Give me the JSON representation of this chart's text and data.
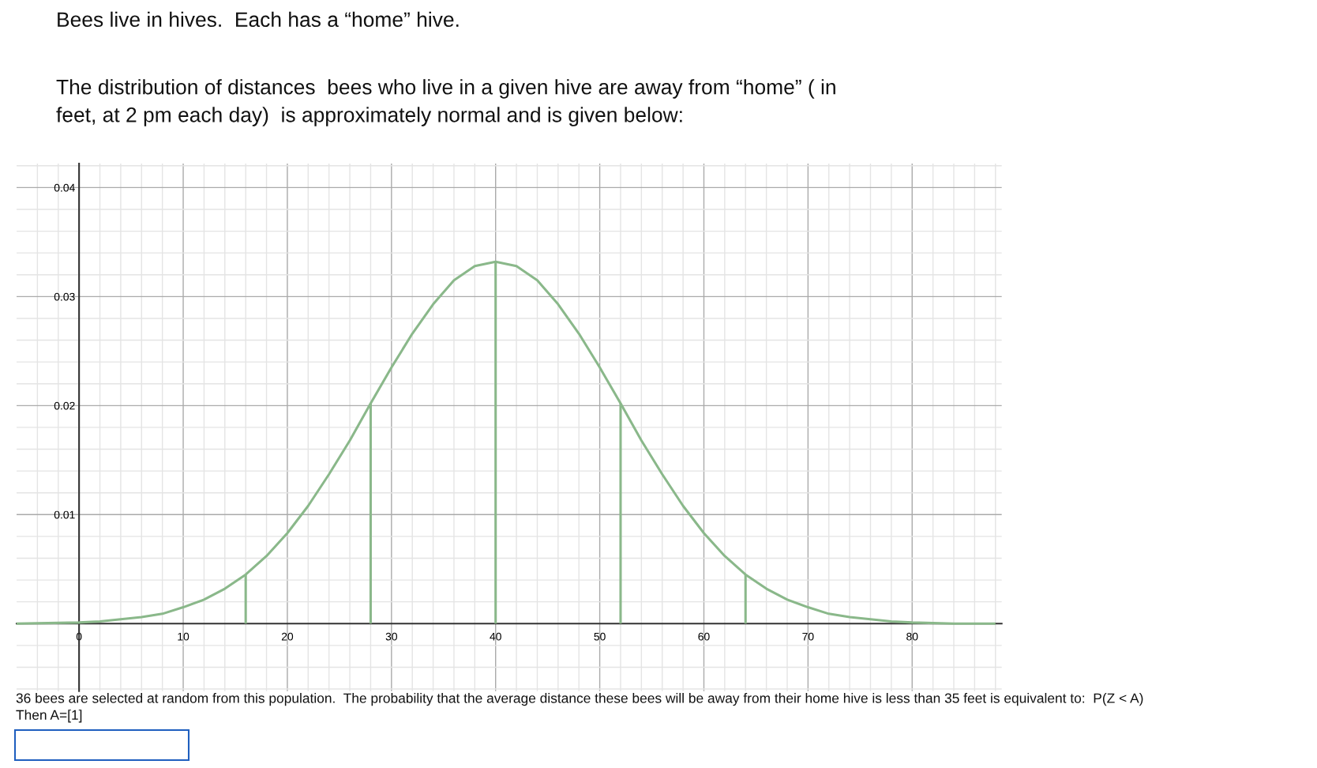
{
  "chart_data": {
    "type": "line",
    "title": "Bees live in hives.  Each has a “home” hive.",
    "subtitle": "The distribution of distances  bees who live in a given hive are away from “home” ( in\nfeet, at 2 pm each day)  is approximately normal and is given below:",
    "annotations": [
      "36 bees are selected at random from this population.  The probability that the average distance these bees will be away from their home hive is less than 35 feet is equivalent to:  P(Z < A)\nThen A=[1]"
    ],
    "series": [
      {
        "color": "#8ab88a",
        "x": [
          -6,
          0,
          2,
          4,
          6,
          8,
          10,
          12,
          14,
          16,
          18,
          20,
          22,
          24,
          26,
          28,
          30,
          32,
          34,
          36,
          38,
          40,
          42,
          44,
          46,
          48,
          50,
          52,
          54,
          56,
          58,
          60,
          62,
          64,
          66,
          68,
          70,
          72,
          74,
          76,
          78,
          80,
          84,
          88
        ],
        "values": [
          0.0,
          0.0001,
          0.0002,
          0.0004,
          0.0006,
          0.0009,
          0.0015,
          0.0022,
          0.0032,
          0.0045,
          0.0062,
          0.0083,
          0.0108,
          0.0137,
          0.0168,
          0.0202,
          0.0235,
          0.0266,
          0.0293,
          0.0315,
          0.0328,
          0.0332,
          0.0328,
          0.0315,
          0.0293,
          0.0266,
          0.0235,
          0.0202,
          0.0168,
          0.0137,
          0.0108,
          0.0083,
          0.0062,
          0.0045,
          0.0032,
          0.0022,
          0.0015,
          0.0009,
          0.0006,
          0.0004,
          0.0002,
          0.0001,
          0.0,
          0.0
        ]
      },
      {
        "color": "#8ab88a",
        "x": [
          16,
          16
        ],
        "values": [
          0,
          0.0045
        ]
      },
      {
        "color": "#8ab88a",
        "x": [
          28,
          28
        ],
        "values": [
          0,
          0.0202
        ]
      },
      {
        "color": "#8ab88a",
        "x": [
          40,
          40
        ],
        "values": [
          0,
          0.0332
        ]
      },
      {
        "color": "#8ab88a",
        "x": [
          52,
          52
        ],
        "values": [
          0,
          0.0202
        ]
      },
      {
        "color": "#8ab88a",
        "x": [
          64,
          64
        ],
        "values": [
          0,
          0.0045
        ]
      }
    ],
    "xlim": [
      -6,
      88.6
    ],
    "ylim": [
      -0.0062,
      0.0422
    ],
    "xticks": [
      {
        "value": -4,
        "label": null
      },
      {
        "value": -2,
        "label": null
      },
      0,
      {
        "value": 2,
        "label": null
      },
      {
        "value": 4,
        "label": null
      },
      {
        "value": 6,
        "label": null
      },
      {
        "value": 8,
        "label": null
      },
      10,
      {
        "value": 12,
        "label": null
      },
      {
        "value": 14,
        "label": null
      },
      {
        "value": 16,
        "label": null
      },
      {
        "value": 18,
        "label": null
      },
      20,
      {
        "value": 22,
        "label": null
      },
      {
        "value": 24,
        "label": null
      },
      {
        "value": 26,
        "label": null
      },
      {
        "value": 28,
        "label": null
      },
      30,
      {
        "value": 32,
        "label": null
      },
      {
        "value": 34,
        "label": null
      },
      {
        "value": 36,
        "label": null
      },
      {
        "value": 38,
        "label": null
      },
      40,
      {
        "value": 42,
        "label": null
      },
      {
        "value": 44,
        "label": null
      },
      {
        "value": 46,
        "label": null
      },
      {
        "value": 48,
        "label": null
      },
      50,
      {
        "value": 52,
        "label": null
      },
      {
        "value": 54,
        "label": null
      },
      {
        "value": 56,
        "label": null
      },
      {
        "value": 58,
        "label": null
      },
      60,
      {
        "value": 62,
        "label": null
      },
      {
        "value": 64,
        "label": null
      },
      {
        "value": 66,
        "label": null
      },
      {
        "value": 68,
        "label": null
      },
      70,
      {
        "value": 72,
        "label": null
      },
      {
        "value": 74,
        "label": null
      },
      {
        "value": 76,
        "label": null
      },
      {
        "value": 78,
        "label": null
      },
      80,
      {
        "value": 82,
        "label": null
      },
      {
        "value": 84,
        "label": null
      },
      {
        "value": 86,
        "label": null
      },
      {
        "value": 88,
        "label": null
      }
    ],
    "yticks": [
      {
        "value": -0.006,
        "label": null
      },
      {
        "value": -0.004,
        "label": null
      },
      {
        "value": -0.002,
        "label": null
      },
      {
        "value": 0.002,
        "label": null
      },
      {
        "value": 0.004,
        "label": null
      },
      {
        "value": 0.006,
        "label": null
      },
      {
        "value": 0.008,
        "label": null
      },
      0.01,
      {
        "value": 0.012,
        "label": null
      },
      {
        "value": 0.014,
        "label": null
      },
      {
        "value": 0.016,
        "label": null
      },
      {
        "value": 0.018,
        "label": null
      },
      0.02,
      {
        "value": 0.022,
        "label": null
      },
      {
        "value": 0.024,
        "label": null
      },
      {
        "value": 0.026,
        "label": null
      },
      {
        "value": 0.028,
        "label": null
      },
      0.03,
      {
        "value": 0.032,
        "label": null
      },
      {
        "value": 0.034,
        "label": null
      },
      {
        "value": 0.036,
        "label": null
      },
      {
        "value": 0.038,
        "label": null
      },
      0.04,
      {
        "value": 0.042,
        "label": null
      }
    ],
    "grid": true,
    "marker": "none",
    "line_style": "solid"
  }
}
